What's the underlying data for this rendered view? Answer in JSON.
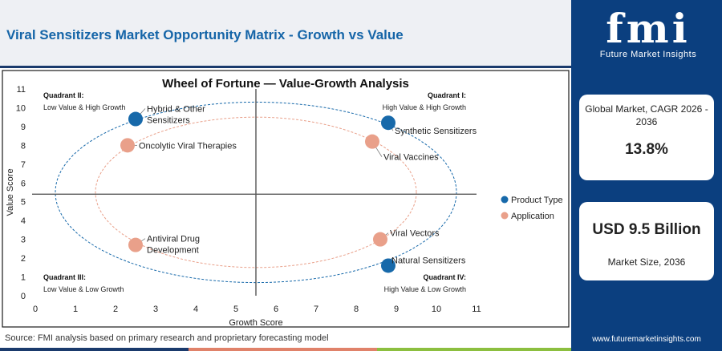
{
  "header": {
    "title": "Viral Sensitizers Market Opportunity Matrix - Growth vs Value"
  },
  "footer": {
    "source": "Source: FMI analysis based on primary research and proprietary forecasting model"
  },
  "brand": {
    "logo_letters": "fmi",
    "logo_tagline": "Future Market Insights",
    "website": "www.futuremarketinsights.com",
    "colors": {
      "panel": "#0b3f7f",
      "title": "#1565a8",
      "accent_blue": "#1769aa",
      "accent_salmon": "#e9a08a"
    }
  },
  "stats": {
    "cagr_label": "Global Market, CAGR 2026 - 2036",
    "cagr_value": "13.8%",
    "size_value": "USD 9.5 Billion",
    "size_label": "Market Size, 2036"
  },
  "chart_data": {
    "type": "scatter",
    "title": "Wheel of Fortune — Value-Growth Analysis",
    "xlabel": "Growth Score",
    "ylabel": "Value Score",
    "xlim": [
      0,
      11
    ],
    "ylim": [
      0,
      11
    ],
    "xticks": [
      0,
      1,
      2,
      3,
      4,
      5,
      6,
      7,
      8,
      9,
      10,
      11
    ],
    "yticks": [
      0,
      1,
      2,
      3,
      4,
      5,
      6,
      7,
      8,
      9,
      10,
      11
    ],
    "divider_x": 5.5,
    "divider_y": 5.4,
    "grid": false,
    "legend_position": "right",
    "quadrants": [
      {
        "title": "Quadrant I:",
        "subtitle": "High Value & High Growth",
        "position": "top-right"
      },
      {
        "title": "Quadrant II:",
        "subtitle": "Low Value & High Growth",
        "position": "top-left"
      },
      {
        "title": "Quadrant III:",
        "subtitle": "Low Value & Low Growth",
        "position": "bottom-left"
      },
      {
        "title": "Quadrant IV:",
        "subtitle": "High Value & Low Growth",
        "position": "bottom-right"
      }
    ],
    "series": [
      {
        "name": "Product Type",
        "color": "#1769aa",
        "points": [
          {
            "label": "Hybrid & Other Sensitizers",
            "x": 2.5,
            "y": 9.4
          },
          {
            "label": "Synthetic Sensitizers",
            "x": 8.8,
            "y": 9.2
          },
          {
            "label": "Natural Sensitizers",
            "x": 8.8,
            "y": 1.6
          }
        ]
      },
      {
        "name": "Application",
        "color": "#e9a08a",
        "points": [
          {
            "label": "Oncolytic Viral Therapies",
            "x": 2.3,
            "y": 8.0
          },
          {
            "label": "Viral Vaccines",
            "x": 8.4,
            "y": 8.2
          },
          {
            "label": "Antiviral Drug Development",
            "x": 2.5,
            "y": 2.7
          },
          {
            "label": "Viral Vectors",
            "x": 8.6,
            "y": 3.0
          }
        ]
      }
    ]
  }
}
